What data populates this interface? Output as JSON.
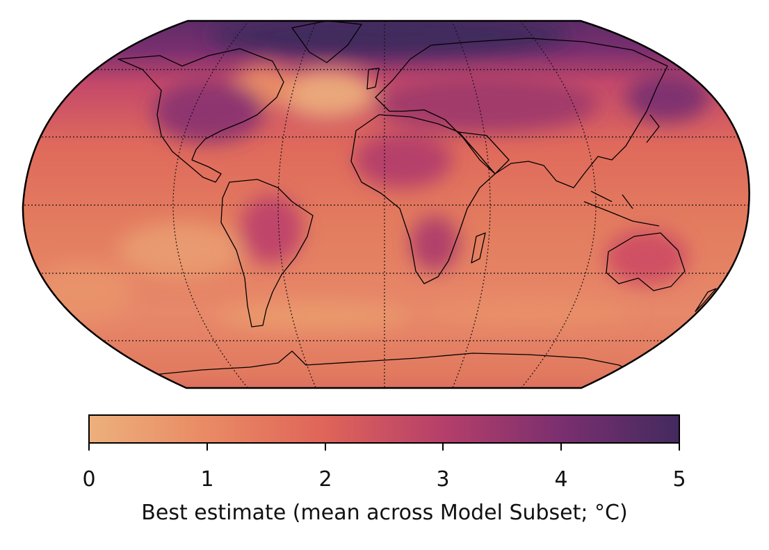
{
  "colorbar": {
    "label": "Best estimate (mean across Model Subset; °C)",
    "min": 0,
    "max": 5,
    "ticks": [
      "0",
      "1",
      "2",
      "3",
      "4",
      "5"
    ],
    "colors": [
      "#edb07d",
      "#e4765a",
      "#cd4f5e",
      "#a4386e",
      "#6e2c6e",
      "#432a5f"
    ]
  },
  "map": {
    "projection": "robinson",
    "graticule": true,
    "coastline_color": "#000000"
  }
}
